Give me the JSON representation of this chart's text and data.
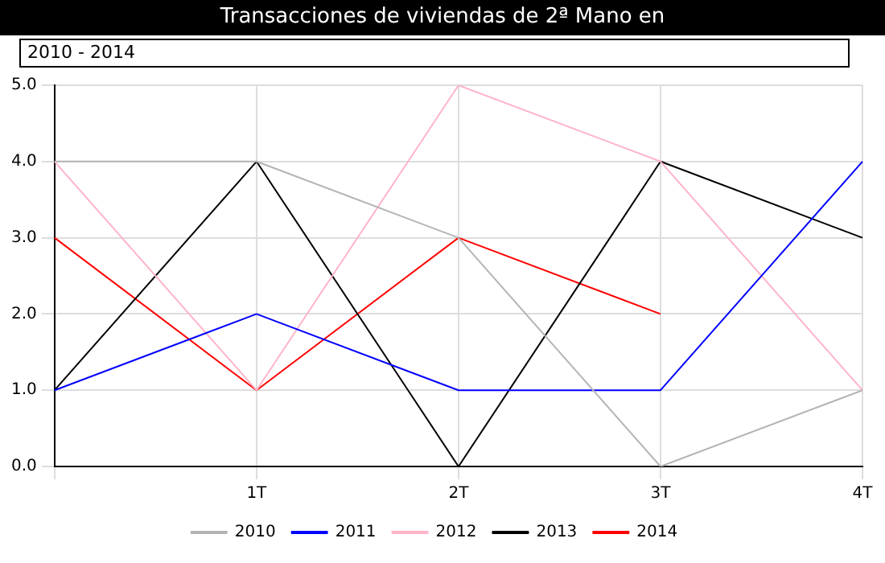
{
  "chart_data": {
    "type": "line",
    "title": "Transacciones de viviendas de 2ª Mano en",
    "subtitle": "2010 - 2014",
    "categories": [
      null,
      "1T",
      "2T",
      "3T",
      "4T"
    ],
    "series": [
      {
        "name": "2010",
        "color": "#b4b4b4",
        "values": [
          4,
          4,
          3,
          0,
          1
        ]
      },
      {
        "name": "2011",
        "color": "#0000ff",
        "values": [
          1,
          2,
          1,
          1,
          4
        ]
      },
      {
        "name": "2012",
        "color": "#ffb4c8",
        "values": [
          4,
          1,
          5,
          4,
          1
        ]
      },
      {
        "name": "2013",
        "color": "#000000",
        "values": [
          1,
          4,
          0,
          4,
          3
        ]
      },
      {
        "name": "2014",
        "color": "#ff0000",
        "values": [
          3,
          1,
          3,
          2,
          null
        ]
      }
    ],
    "ylim": [
      0,
      5
    ],
    "yticks": [
      {
        "value": 0,
        "label": "0.0"
      },
      {
        "value": 1,
        "label": "1.0"
      },
      {
        "value": 2,
        "label": "2.0"
      },
      {
        "value": 3,
        "label": "3.0"
      },
      {
        "value": 4,
        "label": "4.0"
      },
      {
        "value": 5,
        "label": "5.0"
      }
    ],
    "grid": true,
    "legend": "bottom",
    "marker": "none",
    "line_style": "solid"
  }
}
